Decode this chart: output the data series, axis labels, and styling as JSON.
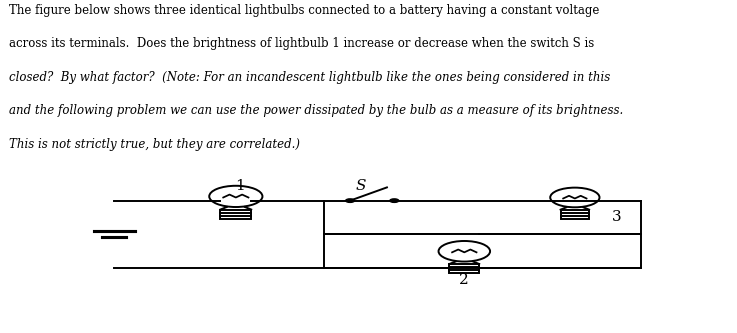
{
  "text_lines": [
    [
      "normal",
      "The figure below shows three identical lightbulbs connected to a battery having a constant voltage"
    ],
    [
      "normal",
      "across its terminals.  Does the brightness of lightbulb 1 increase or decrease when the switch S is"
    ],
    [
      "italic",
      "closed?  By what factor?  (Note: For an incandescent lightbulb like the ones being considered in this"
    ],
    [
      "italic",
      "and the following problem we can use the power dissipated by the bulb as a measure of its brightness."
    ],
    [
      "italic",
      "This is not strictly true, but they are correlated.)"
    ]
  ],
  "bg_color": "#ffffff",
  "text_color": "#000000",
  "circuit_color": "#000000",
  "label_1": "1",
  "label_2": "2",
  "label_3": "3",
  "label_S": "S",
  "fig_width": 7.37,
  "fig_height": 3.33,
  "dpi": 100
}
